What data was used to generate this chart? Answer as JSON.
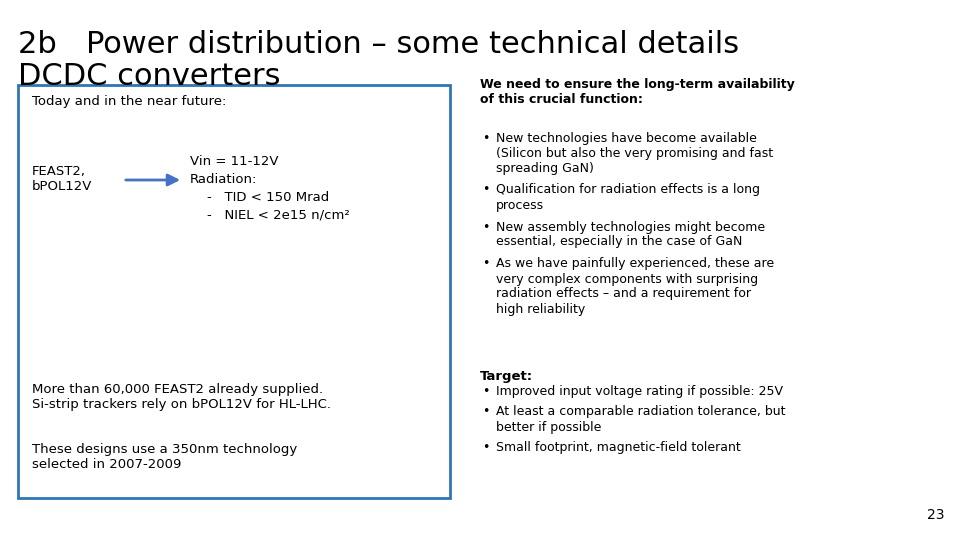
{
  "title_line1": "2b   Power distribution – some technical details",
  "title_line2": "DCDC converters",
  "bg_color": "#ffffff",
  "title_color": "#000000",
  "title_fontsize": 22,
  "title_line2_fontsize": 22,
  "box_border_color": "#2e75b6",
  "box_label": "Today and in the near future:",
  "feast_label": "FEAST2,\nbPOL12V",
  "arrow_color": "#4472c4",
  "more_text": "More than 60,000 FEAST2 already supplied.\nSi-strip trackers rely on bPOL12V for HL-LHC.",
  "design_text": "These designs use a 350nm technology\nselected in 2007-2009",
  "right_bold_text": "We need to ensure the long-term availability\nof this crucial function:",
  "right_bullets": [
    "New technologies have become available\n(Silicon but also the very promising and fast\nspreading GaN)",
    "Qualification for radiation effects is a long\nprocess",
    "New assembly technologies might become\nessential, especially in the case of GaN",
    "As we have painfully experienced, these are\nvery complex components with surprising\nradiation effects – and a requirement for\nhigh reliability"
  ],
  "target_label": "Target:",
  "target_bullets": [
    "Improved input voltage rating if possible: 25V",
    "At least a comparable radiation tolerance, but\nbetter if possible",
    "Small footprint, magnetic-field tolerant"
  ],
  "page_number": "23",
  "vin_line1": "Vin = 11-12V",
  "vin_line2": "Radiation:",
  "vin_line3": "    -   TID < 150 Mrad",
  "vin_line4": "    -   NIEL < 2e15 n/cm²"
}
